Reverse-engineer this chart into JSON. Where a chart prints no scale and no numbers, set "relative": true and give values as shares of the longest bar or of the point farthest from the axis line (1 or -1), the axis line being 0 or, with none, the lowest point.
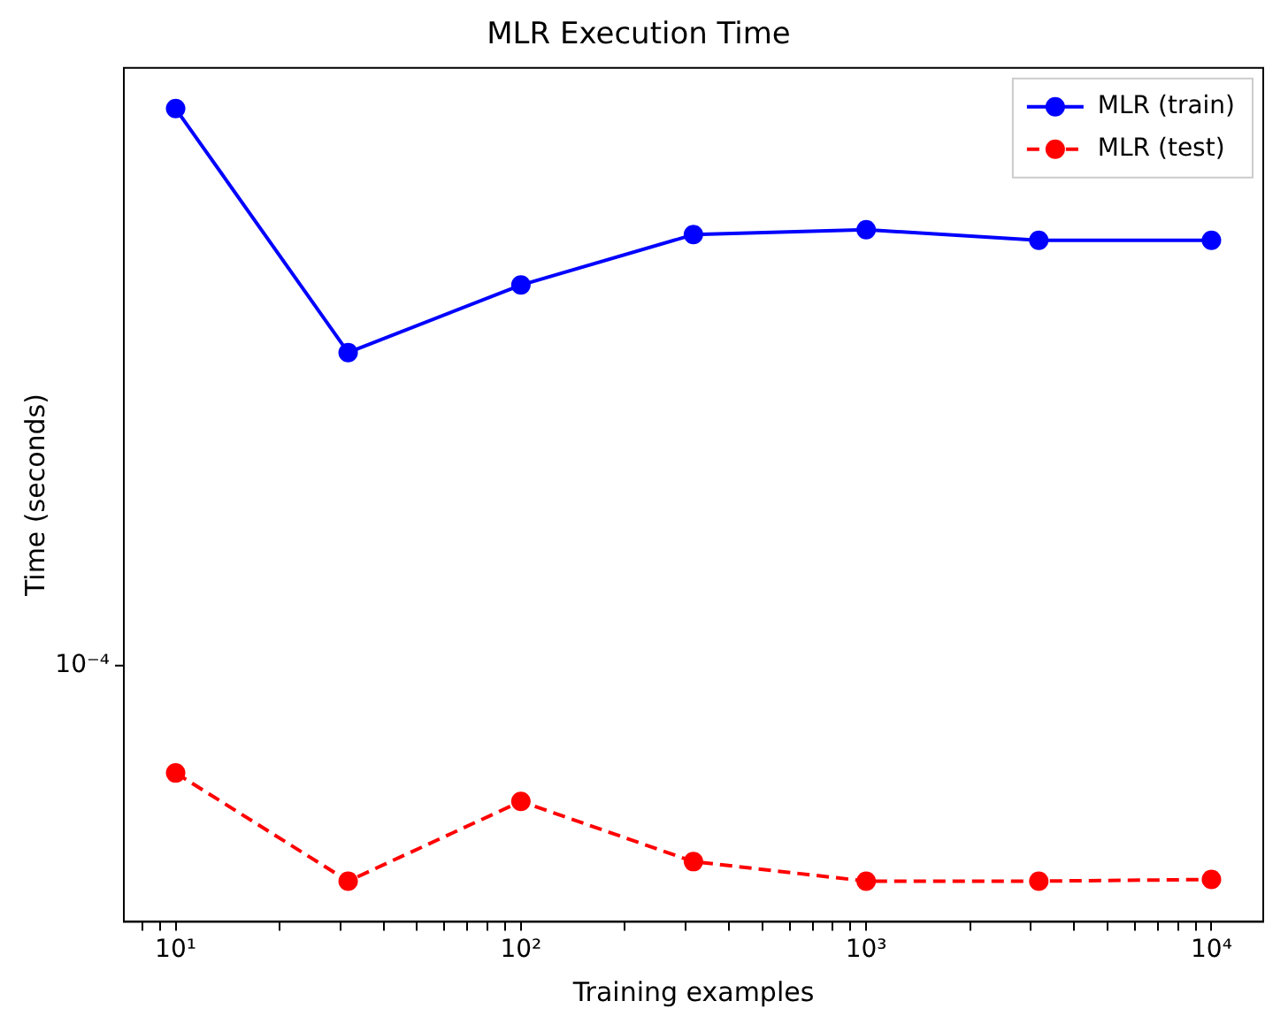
{
  "chart_data": {
    "type": "line",
    "title": "MLR Execution Time",
    "xlabel": "Training examples",
    "ylabel": "Time (seconds)",
    "x": [
      10,
      31.6,
      100,
      316,
      1000,
      3162,
      10000
    ],
    "series": [
      {
        "name": "MLR (train)",
        "color": "#0000ff",
        "line_style": "solid",
        "values": [
          1,
          0.7,
          0.783,
          0.845,
          0.851,
          0.838,
          0.838
        ]
      },
      {
        "name": "MLR (test)",
        "color": "#ff0000",
        "line_style": "dashed",
        "values": [
          0.183,
          0.05,
          0.148,
          0.074,
          0.05,
          0.05,
          0.052
        ]
      }
    ],
    "relative": true,
    "annotations": [
      "10⁻⁴"
    ],
    "log": "x",
    "marker": "circle",
    "legend": "top right",
    "grid": false,
    "xlim": [
      7.08,
      14125
    ],
    "xticks": [
      {
        "value": 8,
        "label": null
      },
      {
        "value": 9,
        "label": null
      },
      {
        "value": 10,
        "label": "10¹"
      },
      {
        "value": 20,
        "label": null
      },
      {
        "value": 30,
        "label": null
      },
      {
        "value": 40,
        "label": null
      },
      {
        "value": 50,
        "label": null
      },
      {
        "value": 60,
        "label": null
      },
      {
        "value": 70,
        "label": null
      },
      {
        "value": 80,
        "label": null
      },
      {
        "value": 90,
        "label": null
      },
      {
        "value": 100,
        "label": "10²"
      },
      {
        "value": 200,
        "label": null
      },
      {
        "value": 300,
        "label": null
      },
      {
        "value": 400,
        "label": null
      },
      {
        "value": 500,
        "label": null
      },
      {
        "value": 600,
        "label": null
      },
      {
        "value": 700,
        "label": null
      },
      {
        "value": 800,
        "label": null
      },
      {
        "value": 900,
        "label": null
      },
      {
        "value": 1000,
        "label": "10³"
      },
      {
        "value": 2000,
        "label": null
      },
      {
        "value": 3000,
        "label": null
      },
      {
        "value": 4000,
        "label": null
      },
      {
        "value": 5000,
        "label": null
      },
      {
        "value": 6000,
        "label": null
      },
      {
        "value": 7000,
        "label": null
      },
      {
        "value": 8000,
        "label": null
      },
      {
        "value": 9000,
        "label": null
      },
      {
        "value": 10000,
        "label": "10⁴"
      }
    ]
  }
}
